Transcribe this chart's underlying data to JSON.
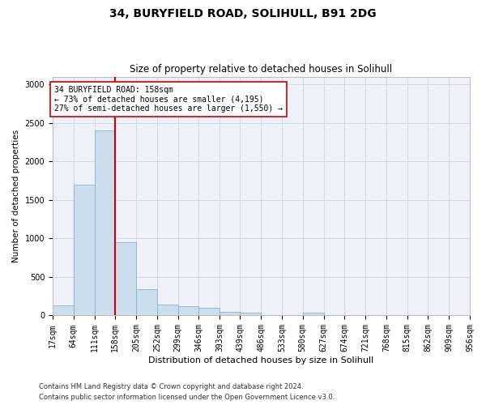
{
  "title1": "34, BURYFIELD ROAD, SOLIHULL, B91 2DG",
  "title2": "Size of property relative to detached houses in Solihull",
  "xlabel": "Distribution of detached houses by size in Solihull",
  "ylabel": "Number of detached properties",
  "footnote1": "Contains HM Land Registry data © Crown copyright and database right 2024.",
  "footnote2": "Contains public sector information licensed under the Open Government Licence v3.0.",
  "annotation_line1": "34 BURYFIELD ROAD: 158sqm",
  "annotation_line2": "← 73% of detached houses are smaller (4,195)",
  "annotation_line3": "27% of semi-detached houses are larger (1,550) →",
  "property_size": 158,
  "bar_color": "#ccdded",
  "bar_edge_color": "#7aaac8",
  "red_line_color": "#cc0000",
  "background_color": "#eef2f8",
  "bin_edges": [
    17,
    64,
    111,
    158,
    205,
    252,
    299,
    346,
    393,
    439,
    486,
    533,
    580,
    627,
    674,
    721,
    768,
    815,
    862,
    909,
    956
  ],
  "bar_heights": [
    130,
    1700,
    2400,
    950,
    340,
    145,
    125,
    95,
    50,
    35,
    0,
    0,
    35,
    0,
    0,
    0,
    0,
    0,
    0,
    0
  ],
  "ylim": [
    0,
    3100
  ],
  "yticks": [
    0,
    500,
    1000,
    1500,
    2000,
    2500,
    3000
  ],
  "grid_color": "#d0d8e8",
  "title1_fontsize": 10,
  "title2_fontsize": 8.5,
  "xlabel_fontsize": 8,
  "ylabel_fontsize": 7.5,
  "tick_fontsize": 7,
  "annot_fontsize": 7
}
